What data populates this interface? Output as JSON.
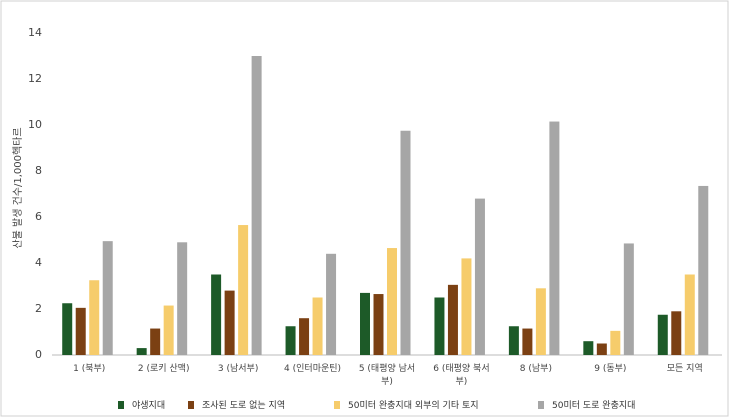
{
  "chart_data": {
    "type": "bar",
    "y_label": "산불 발생 건수/1,000헥타르",
    "categories": [
      "1 (북부)",
      "2 (로키 산맥)",
      "3 (남서부)",
      "4 (인터마운틴)",
      "5 (태평양 남서부)",
      "6 (태평양 북서부)",
      "8 (남부)",
      "9 (동부)",
      "모든 지역"
    ],
    "series": [
      {
        "name": "야생지대",
        "color": "#1d5a28",
        "values": [
          2.25,
          0.3,
          3.5,
          1.25,
          2.7,
          2.5,
          1.25,
          0.6,
          1.75
        ]
      },
      {
        "name": "조사된 도로 없는 지역",
        "color": "#7b4013",
        "values": [
          2.05,
          1.15,
          2.8,
          1.6,
          2.65,
          3.05,
          1.15,
          0.5,
          1.9
        ]
      },
      {
        "name": "50미터 완충지대 외부의 기타 토지",
        "color": "#f6cc6b",
        "values": [
          3.25,
          2.15,
          5.65,
          2.5,
          4.65,
          4.2,
          2.9,
          1.05,
          3.5
        ]
      },
      {
        "name": "50미터 도로 완충지대",
        "color": "#a6a6a6",
        "values": [
          4.95,
          4.9,
          13.0,
          4.4,
          9.75,
          6.8,
          10.15,
          4.85,
          7.35
        ]
      }
    ],
    "ylim": [
      0,
      14
    ],
    "yticks": [
      0,
      2,
      4,
      6,
      8,
      10,
      12,
      14
    ],
    "grid": false
  }
}
